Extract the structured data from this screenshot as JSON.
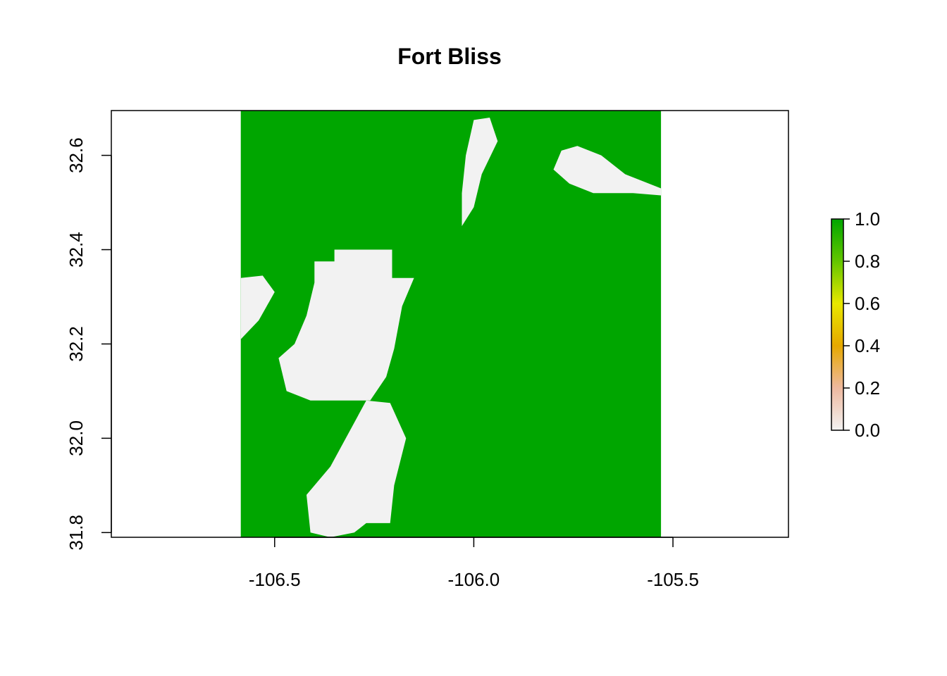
{
  "chart_data": {
    "type": "heatmap",
    "title": "Fort Bliss",
    "xlabel": "",
    "ylabel": "",
    "xlim": [
      -106.91,
      -105.21
    ],
    "ylim": [
      31.79,
      32.695
    ],
    "x_ticks": [
      {
        "value": -106.5,
        "label": "-106.5"
      },
      {
        "value": -106.0,
        "label": "-106.0"
      },
      {
        "value": -105.5,
        "label": "-105.5"
      }
    ],
    "y_ticks": [
      {
        "value": 31.8,
        "label": "31.8"
      },
      {
        "value": 32.0,
        "label": "32.0"
      },
      {
        "value": 32.2,
        "label": "32.2"
      },
      {
        "value": 32.4,
        "label": "32.4"
      },
      {
        "value": 32.6,
        "label": "32.6"
      }
    ],
    "raster_extent": {
      "xmin": -106.585,
      "xmax": -105.53,
      "ymin": 31.79,
      "ymax": 32.695
    },
    "values_present": [
      0,
      1
    ],
    "value_colors": {
      "0": "#f2f2f2",
      "1": "#00a600"
    },
    "non_vegetated_regions": [
      {
        "name": "northwest block",
        "value": 0,
        "polygon": [
          [
            -106.4,
            32.375
          ],
          [
            -106.35,
            32.375
          ],
          [
            -106.35,
            32.4
          ],
          [
            -106.205,
            32.4
          ],
          [
            -106.205,
            32.34
          ],
          [
            -106.15,
            32.34
          ],
          [
            -106.18,
            32.28
          ],
          [
            -106.2,
            32.19
          ],
          [
            -106.22,
            32.13
          ],
          [
            -106.26,
            32.08
          ],
          [
            -106.41,
            32.08
          ],
          [
            -106.47,
            32.1
          ],
          [
            -106.49,
            32.17
          ],
          [
            -106.45,
            32.2
          ],
          [
            -106.42,
            32.26
          ],
          [
            -106.4,
            32.33
          ]
        ]
      },
      {
        "name": "southern strip",
        "value": 0,
        "polygon": [
          [
            -106.27,
            32.08
          ],
          [
            -106.21,
            32.075
          ],
          [
            -106.17,
            32.0
          ],
          [
            -106.2,
            31.9
          ],
          [
            -106.21,
            31.82
          ],
          [
            -106.27,
            31.82
          ],
          [
            -106.3,
            31.8
          ],
          [
            -106.36,
            31.79
          ],
          [
            -106.41,
            31.8
          ],
          [
            -106.42,
            31.88
          ],
          [
            -106.36,
            31.94
          ]
        ]
      },
      {
        "name": "western edge",
        "value": 0,
        "polygon": [
          [
            -106.585,
            32.34
          ],
          [
            -106.53,
            32.345
          ],
          [
            -106.5,
            32.31
          ],
          [
            -106.54,
            32.25
          ],
          [
            -106.585,
            32.21
          ]
        ]
      },
      {
        "name": "northern corridor",
        "value": 0,
        "polygon": [
          [
            -106.0,
            32.675
          ],
          [
            -105.96,
            32.68
          ],
          [
            -105.94,
            32.63
          ],
          [
            -105.98,
            32.56
          ],
          [
            -106.0,
            32.49
          ],
          [
            -106.03,
            32.45
          ],
          [
            -106.03,
            32.52
          ],
          [
            -106.02,
            32.6
          ]
        ]
      },
      {
        "name": "northeast patch",
        "value": 0,
        "polygon": [
          [
            -105.78,
            32.61
          ],
          [
            -105.74,
            32.62
          ],
          [
            -105.68,
            32.6
          ],
          [
            -105.62,
            32.56
          ],
          [
            -105.53,
            32.53
          ],
          [
            -105.53,
            32.515
          ],
          [
            -105.6,
            32.52
          ],
          [
            -105.7,
            32.52
          ],
          [
            -105.76,
            32.54
          ],
          [
            -105.8,
            32.57
          ]
        ]
      }
    ],
    "legend": {
      "placement": "right",
      "type": "colorbar",
      "ticks": [
        {
          "value": 0.0,
          "label": "0.0"
        },
        {
          "value": 0.2,
          "label": "0.2"
        },
        {
          "value": 0.4,
          "label": "0.4"
        },
        {
          "value": 0.6,
          "label": "0.6"
        },
        {
          "value": 0.8,
          "label": "0.8"
        },
        {
          "value": 1.0,
          "label": "1.0"
        }
      ],
      "colors": [
        "#f2f2f2",
        "#eeb99f",
        "#e6a800",
        "#e8e800",
        "#63c600",
        "#00a600"
      ]
    },
    "grid": false
  }
}
